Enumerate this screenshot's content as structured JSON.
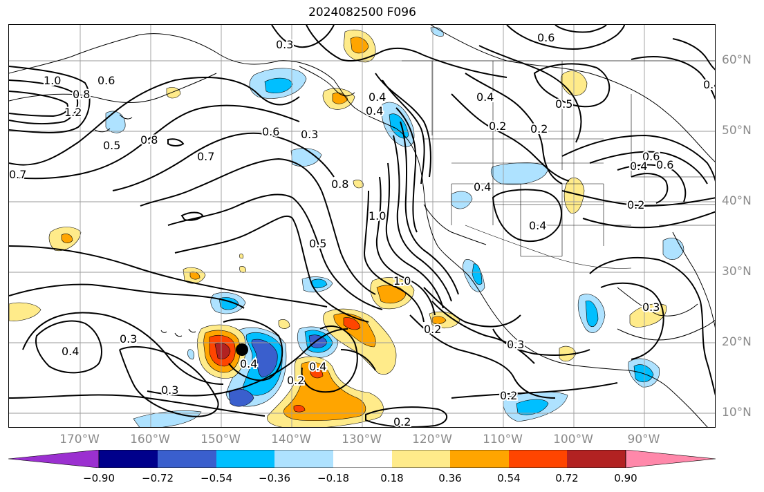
{
  "title": "2024082500 F096",
  "map": {
    "lon_labels": [
      "170°W",
      "160°W",
      "150°W",
      "140°W",
      "130°W",
      "120°W",
      "110°W",
      "100°W",
      "90°W"
    ],
    "lat_labels": [
      "60°N",
      "50°N",
      "40°N",
      "30°N",
      "20°N",
      "10°N"
    ],
    "contour_labels": [
      "0.3",
      "0.6",
      "1.0",
      "0.8",
      "1.2",
      "0.6",
      "0.5",
      "0.8",
      "0.7",
      "0.6",
      "0.7",
      "0.4",
      "0.4",
      "0.8",
      "1.0",
      "0.5",
      "1.0",
      "0.3",
      "0.4",
      "0.3",
      "0.4",
      "0.2",
      "0.4",
      "0.2",
      "0.2",
      "0.3",
      "0.2",
      "0.2",
      "0.4",
      "0.2",
      "0.3",
      "0.5",
      "0.4",
      "0.6",
      "0.2",
      "0.4",
      "0.3",
      "0.6",
      "0.4",
      "0.4"
    ],
    "marker": "storm-center-marker"
  },
  "colorbar": {
    "ticks": [
      "−0.90",
      "−0.72",
      "−0.54",
      "−0.36",
      "−0.18",
      "0.18",
      "0.36",
      "0.54",
      "0.72",
      "0.90"
    ],
    "colors": [
      "#9b30d0",
      "#00008b",
      "#3a5fcd",
      "#00bfff",
      "#aee2ff",
      "#ffffff",
      "#ffeb8a",
      "#ffa500",
      "#ff4500",
      "#b22222",
      "#ff88aa"
    ]
  }
}
